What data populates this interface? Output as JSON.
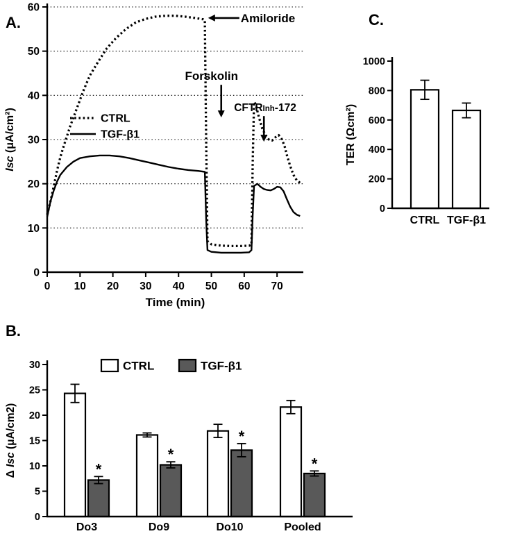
{
  "chart_data": [
    {
      "id": "A",
      "panel_label": "A.",
      "type": "line",
      "xlabel": "Time (min)",
      "ylabel": "Isc (μA/cm²)",
      "ylabel_parts": [
        {
          "text": "Isc",
          "italic": true
        },
        {
          "text": " (μA/cm²)",
          "italic": false
        }
      ],
      "xlim": [
        0,
        78
      ],
      "ylim": [
        0,
        60
      ],
      "xticks": [
        0,
        10,
        20,
        30,
        40,
        50,
        60,
        70
      ],
      "yticks": [
        0,
        10,
        20,
        30,
        40,
        50,
        60
      ],
      "grid": "horizontal-dotted",
      "legend_position": "inside-left",
      "annotations": [
        {
          "text": "Amiloride",
          "dir": "left",
          "tip": [
            49,
            57.5
          ]
        },
        {
          "text": "Forskolin",
          "dir": "down",
          "tip": [
            53,
            35
          ]
        },
        {
          "text": "CFTRinh-172",
          "dir": "down",
          "tip": [
            66,
            29.5
          ],
          "parts": [
            {
              "text": "CFTR"
            },
            {
              "text": "Inh",
              "small": true
            },
            {
              "text": "-172"
            }
          ]
        }
      ],
      "series": [
        {
          "name": "CTRL",
          "style": "dotted",
          "points": [
            [
              0,
              13
            ],
            [
              1,
              16
            ],
            [
              2,
              19.5
            ],
            [
              3,
              23
            ],
            [
              4,
              26
            ],
            [
              5,
              28.5
            ],
            [
              7,
              33
            ],
            [
              9,
              37
            ],
            [
              11,
              41
            ],
            [
              13,
              44.5
            ],
            [
              15,
              47
            ],
            [
              18,
              50.5
            ],
            [
              21,
              53
            ],
            [
              24,
              55
            ],
            [
              27,
              56.5
            ],
            [
              30,
              57.3
            ],
            [
              33,
              57.8
            ],
            [
              36,
              58
            ],
            [
              39,
              58
            ],
            [
              42,
              57.8
            ],
            [
              45,
              57.5
            ],
            [
              47.5,
              57.2
            ],
            [
              48,
              57
            ],
            [
              48.4,
              30
            ],
            [
              48.8,
              7
            ],
            [
              50,
              6.3
            ],
            [
              53,
              6
            ],
            [
              56,
              5.9
            ],
            [
              59,
              5.9
            ],
            [
              61.5,
              6
            ],
            [
              62.2,
              6.2
            ],
            [
              62.6,
              25
            ],
            [
              63,
              38.5
            ],
            [
              63.5,
              38
            ],
            [
              64.5,
              35
            ],
            [
              65.5,
              32.5
            ],
            [
              66.5,
              31
            ],
            [
              67.5,
              30
            ],
            [
              68.5,
              29.8
            ],
            [
              69.5,
              30.5
            ],
            [
              70.5,
              31
            ],
            [
              71.5,
              30
            ],
            [
              72.3,
              28.5
            ],
            [
              73,
              26.5
            ],
            [
              74,
              24
            ],
            [
              75,
              22
            ],
            [
              76,
              20.8
            ],
            [
              77,
              20.2
            ]
          ]
        },
        {
          "name": "TGF-β1",
          "style": "solid",
          "points": [
            [
              0,
              12.5
            ],
            [
              1,
              16
            ],
            [
              2,
              18.5
            ],
            [
              3,
              20.5
            ],
            [
              4,
              22
            ],
            [
              6,
              23.8
            ],
            [
              8,
              25
            ],
            [
              10,
              25.8
            ],
            [
              13,
              26.2
            ],
            [
              16,
              26.4
            ],
            [
              19,
              26.4
            ],
            [
              22,
              26.2
            ],
            [
              25,
              25.8
            ],
            [
              28,
              25.3
            ],
            [
              31,
              24.8
            ],
            [
              34,
              24.3
            ],
            [
              37,
              23.8
            ],
            [
              40,
              23.4
            ],
            [
              43,
              23.1
            ],
            [
              46,
              22.9
            ],
            [
              48,
              22.7
            ],
            [
              48.4,
              12
            ],
            [
              48.8,
              5
            ],
            [
              50,
              4.6
            ],
            [
              53,
              4.4
            ],
            [
              56,
              4.4
            ],
            [
              59,
              4.4
            ],
            [
              61.5,
              4.5
            ],
            [
              62.2,
              5
            ],
            [
              62.6,
              13
            ],
            [
              63,
              19.5
            ],
            [
              64,
              20
            ],
            [
              65,
              19.3
            ],
            [
              66,
              18.8
            ],
            [
              67,
              18.6
            ],
            [
              68,
              18.5
            ],
            [
              69,
              18.8
            ],
            [
              70,
              19.3
            ],
            [
              71,
              19.2
            ],
            [
              72,
              18.3
            ],
            [
              73,
              16.5
            ],
            [
              74,
              14.8
            ],
            [
              75,
              13.6
            ],
            [
              76,
              13
            ],
            [
              77,
              12.7
            ]
          ]
        }
      ]
    },
    {
      "id": "B",
      "panel_label": "B.",
      "type": "bar",
      "ylabel": "Δ Isc (μA/cm2)",
      "ylabel_parts": [
        {
          "text": "Δ ",
          "italic": false
        },
        {
          "text": "Isc",
          "italic": true
        },
        {
          "text": " (μA/cm2)",
          "italic": false
        }
      ],
      "categories": [
        "Do3",
        "Do9",
        "Do10",
        "Pooled"
      ],
      "ylim": [
        0,
        30
      ],
      "yticks": [
        0,
        5,
        10,
        15,
        20,
        25,
        30
      ],
      "legend_position": "inside-top",
      "sig_marker": "*",
      "series": [
        {
          "name": "CTRL",
          "fill": "#ffffff",
          "values": [
            24.3,
            16.1,
            16.9,
            21.6
          ],
          "errors": [
            1.8,
            0.4,
            1.3,
            1.3
          ],
          "sig": [
            false,
            false,
            false,
            false
          ]
        },
        {
          "name": "TGF-β1",
          "fill": "#595959",
          "values": [
            7.2,
            10.2,
            13.1,
            8.5
          ],
          "errors": [
            0.7,
            0.6,
            1.3,
            0.5
          ],
          "sig": [
            true,
            true,
            true,
            true
          ]
        }
      ]
    },
    {
      "id": "C",
      "panel_label": "C.",
      "type": "bar",
      "ylabel": "TER (Ωcm²)",
      "ylabel_parts": [
        {
          "text": "TER (Ωcm²)",
          "italic": false
        }
      ],
      "categories": [
        "CTRL",
        "TGF-β1"
      ],
      "ylim": [
        0,
        1000
      ],
      "yticks": [
        0,
        200,
        400,
        600,
        800,
        1000
      ],
      "series": [
        {
          "name": "TER",
          "fill": "#ffffff",
          "values": [
            805,
            665
          ],
          "errors": [
            65,
            50
          ]
        }
      ]
    }
  ],
  "colors": {
    "axis": "#000000",
    "bar_ctrl_fill": "#ffffff",
    "bar_tgf_fill": "#595959",
    "background": "#ffffff"
  }
}
